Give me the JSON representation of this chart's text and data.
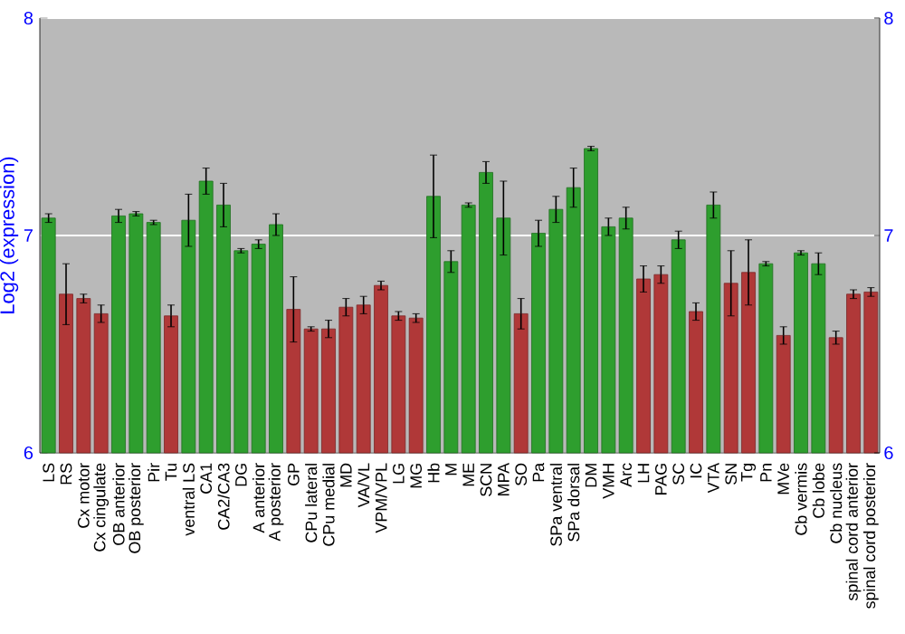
{
  "chart_data": {
    "type": "bar",
    "ylabel": "Log2 (expression)",
    "categories": [
      "LS",
      "RS",
      "Cx motor",
      "Cx cingulate",
      "OB anterior",
      "OB posterior",
      "Pir",
      "Tu",
      "ventral LS",
      "CA1",
      "CA2/CA3",
      "DG",
      "A anterior",
      "A posterior",
      "GP",
      "CPu lateral",
      "CPu medial",
      "MD",
      "VA/VL",
      "VPM/VPL",
      "LG",
      "MG",
      "Hb",
      "M",
      "ME",
      "SCN",
      "MPA",
      "SO",
      "Pa",
      "SPa ventral",
      "SPa dorsal",
      "DM",
      "VMH",
      "Arc",
      "LH",
      "PAG",
      "SC",
      "IC",
      "VTA",
      "SN",
      "Tg",
      "Pn",
      "MVe",
      "Cb vermis",
      "Cb lobe",
      "Cb nucleus",
      "spinal cord anterior",
      "spinal cord posterior"
    ],
    "values": [
      7.08,
      6.73,
      6.71,
      6.64,
      7.09,
      7.1,
      7.06,
      6.63,
      7.07,
      7.25,
      7.14,
      6.93,
      6.96,
      7.05,
      6.66,
      6.57,
      6.57,
      6.67,
      6.68,
      6.77,
      6.63,
      6.62,
      7.18,
      6.88,
      7.14,
      7.29,
      7.08,
      6.64,
      7.01,
      7.12,
      7.22,
      7.4,
      7.04,
      7.08,
      6.8,
      6.82,
      6.98,
      6.65,
      7.14,
      6.78,
      6.83,
      6.87,
      6.54,
      6.92,
      6.87,
      6.53,
      6.73,
      6.74
    ],
    "errors": [
      0.02,
      0.14,
      0.02,
      0.04,
      0.03,
      0.01,
      0.01,
      0.05,
      0.12,
      0.06,
      0.1,
      0.01,
      0.02,
      0.05,
      0.15,
      0.01,
      0.04,
      0.04,
      0.04,
      0.02,
      0.02,
      0.02,
      0.19,
      0.05,
      0.01,
      0.05,
      0.17,
      0.07,
      0.06,
      0.06,
      0.09,
      0.01,
      0.04,
      0.05,
      0.06,
      0.04,
      0.04,
      0.04,
      0.06,
      0.15,
      0.15,
      0.01,
      0.04,
      0.01,
      0.05,
      0.03,
      0.02,
      0.02
    ],
    "colors": [
      "#2e9e2e",
      "#b03838",
      "#b03838",
      "#b03838",
      "#2e9e2e",
      "#2e9e2e",
      "#2e9e2e",
      "#b03838",
      "#2e9e2e",
      "#2e9e2e",
      "#2e9e2e",
      "#2e9e2e",
      "#2e9e2e",
      "#2e9e2e",
      "#b03838",
      "#b03838",
      "#b03838",
      "#b03838",
      "#b03838",
      "#b03838",
      "#b03838",
      "#b03838",
      "#2e9e2e",
      "#2e9e2e",
      "#2e9e2e",
      "#2e9e2e",
      "#2e9e2e",
      "#b03838",
      "#2e9e2e",
      "#2e9e2e",
      "#2e9e2e",
      "#2e9e2e",
      "#2e9e2e",
      "#2e9e2e",
      "#b03838",
      "#b03838",
      "#2e9e2e",
      "#b03838",
      "#2e9e2e",
      "#b03838",
      "#b03838",
      "#2e9e2e",
      "#b03838",
      "#2e9e2e",
      "#2e9e2e",
      "#b03838",
      "#b03838",
      "#b03838"
    ],
    "ylim": [
      6,
      8
    ],
    "yticks": [
      6,
      7,
      8
    ],
    "y2lim": [
      6,
      8
    ],
    "y2ticks": [
      6,
      7,
      8
    ],
    "grid": "y"
  }
}
